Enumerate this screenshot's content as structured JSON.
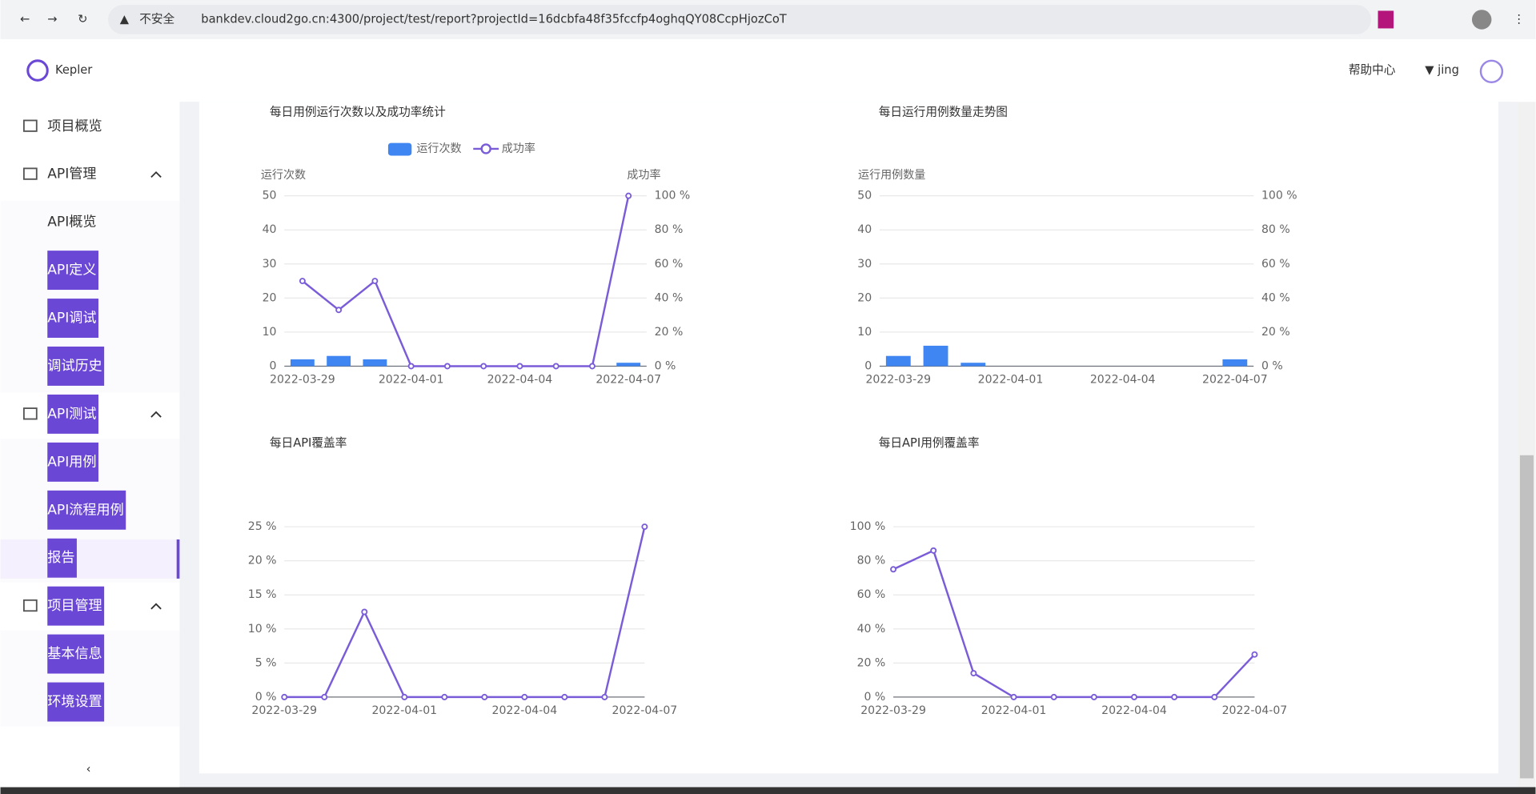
{
  "browser": {
    "security": "不安全",
    "url": "bankdev.cloud2go.cn:4300/project/test/report?projectId=16dcbfa48f35fccfp4oghqQY08CcpHjozCoT"
  },
  "header": {
    "logo": "Kepler",
    "help": "帮助中心",
    "user": "jing"
  },
  "sidebar": {
    "items": [
      "项目概览",
      "API管理",
      "API概览",
      "API定义",
      "API调试",
      "调试历史",
      "API测试",
      "API用例",
      "API流程用例",
      "报告",
      "项目管理",
      "基本信息",
      "环境设置"
    ]
  },
  "chart_data": [
    {
      "type": "bar",
      "title": "每日用例运行次数以及成功率统计",
      "y_label": "运行次数",
      "y2_label": "成功率",
      "categories": [
        "2022-03-29",
        null,
        null,
        "2022-04-01",
        null,
        null,
        "2022-04-04",
        null,
        null,
        "2022-04-07"
      ],
      "series": [
        {
          "name": "运行次数",
          "type": "bar",
          "color": "#3f86f2",
          "values": [
            2,
            3,
            2,
            0,
            0,
            0,
            0,
            0,
            0,
            1
          ]
        },
        {
          "name": "成功率",
          "type": "line",
          "axis": "y2",
          "color": "#7a5cd8",
          "values": [
            50,
            33,
            50,
            0,
            0,
            0,
            0,
            0,
            0,
            100
          ]
        }
      ],
      "ylim": [
        0,
        50
      ],
      "yticks": [
        0,
        10,
        20,
        30,
        40,
        50
      ],
      "y2lim": [
        0,
        100
      ],
      "y2ticks": [
        {
          "value": 0,
          "label": "0 %"
        },
        {
          "value": 20,
          "label": "20 %"
        },
        {
          "value": 40,
          "label": "40 %"
        },
        {
          "value": 60,
          "label": "60 %"
        },
        {
          "value": 80,
          "label": "80 %"
        },
        {
          "value": 100,
          "label": "100 %"
        }
      ],
      "grid": true,
      "legend": "top"
    },
    {
      "type": "bar",
      "title": "每日运行用例数量走势图",
      "y_label": "运行用例数量",
      "categories": [
        "2022-03-29",
        null,
        null,
        "2022-04-01",
        null,
        null,
        "2022-04-04",
        null,
        null,
        "2022-04-07"
      ],
      "series": [
        {
          "type": "bar",
          "color": "#3f86f2",
          "values": [
            3,
            6,
            1,
            0,
            0,
            0,
            0,
            0,
            0,
            2
          ]
        }
      ],
      "ylim": [
        0,
        50
      ],
      "yticks": [
        0,
        10,
        20,
        30,
        40,
        50
      ],
      "y2lim": [
        0,
        100
      ],
      "y2ticks": [
        {
          "value": 0,
          "label": "0 %"
        },
        {
          "value": 20,
          "label": "20 %"
        },
        {
          "value": 40,
          "label": "40 %"
        },
        {
          "value": 60,
          "label": "60 %"
        },
        {
          "value": 80,
          "label": "80 %"
        },
        {
          "value": 100,
          "label": "100 %"
        }
      ],
      "grid": true
    },
    {
      "type": "line",
      "title": "每日API覆盖率",
      "categories": [
        "2022-03-29",
        null,
        null,
        "2022-04-01",
        null,
        null,
        "2022-04-04",
        null,
        null,
        "2022-04-07"
      ],
      "series": [
        {
          "type": "line",
          "color": "#7a5cd8",
          "values": [
            0,
            0,
            12.5,
            0,
            0,
            0,
            0,
            0,
            0,
            25
          ]
        }
      ],
      "ylim": [
        0,
        25
      ],
      "yticks": [
        {
          "value": 0,
          "label": "0 %"
        },
        {
          "value": 5,
          "label": "5 %"
        },
        {
          "value": 10,
          "label": "10 %"
        },
        {
          "value": 15,
          "label": "15 %"
        },
        {
          "value": 20,
          "label": "20 %"
        },
        {
          "value": 25,
          "label": "25 %"
        }
      ],
      "grid": true
    },
    {
      "type": "line",
      "title": "每日API用例覆盖率",
      "categories": [
        "2022-03-29",
        null,
        null,
        "2022-04-01",
        null,
        null,
        "2022-04-04",
        null,
        null,
        "2022-04-07"
      ],
      "series": [
        {
          "type": "line",
          "color": "#7a5cd8",
          "values": [
            75,
            86,
            14,
            0,
            0,
            0,
            0,
            0,
            0,
            25
          ]
        }
      ],
      "ylim": [
        0,
        100
      ],
      "yticks": [
        {
          "value": 0,
          "label": "0 %"
        },
        {
          "value": 20,
          "label": "20 %"
        },
        {
          "value": 40,
          "label": "40 %"
        },
        {
          "value": 60,
          "label": "60 %"
        },
        {
          "value": 80,
          "label": "80 %"
        },
        {
          "value": 100,
          "label": "100 %"
        }
      ],
      "grid": true
    }
  ]
}
